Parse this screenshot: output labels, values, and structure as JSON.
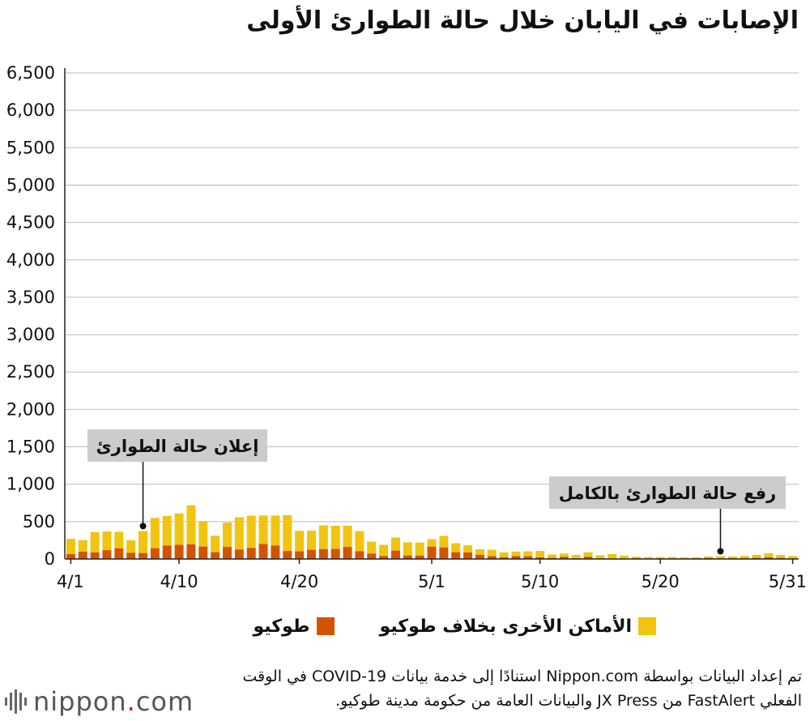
{
  "title": "الإصابات في اليابان خلال حالة الطوارئ الأولى",
  "legend": {
    "other_label": "الأماكن الأخرى بخلاف طوكيو",
    "tokyo_label": "طوكيو"
  },
  "source_text": "تم إعداد البيانات بواسطة Nippon.com استنادًا إلى خدمة بيانات COVID-19 في الوقت الفعلي FastAlert من JX Press والبيانات العامة من حكومة مدينة طوكيو.",
  "logo": {
    "name": "nippon",
    "dot": ".",
    "suffix": "com"
  },
  "colors": {
    "tokyo": "#d35400",
    "other": "#f1c40f",
    "grid": "#bbbbbb",
    "annotation_bg": "#cccccc"
  },
  "chart_data": {
    "type": "bar",
    "stacked": true,
    "ylim": [
      0,
      6500
    ],
    "yticks": [
      0,
      500,
      1000,
      1500,
      2000,
      2500,
      3000,
      3500,
      4000,
      4500,
      5000,
      5500,
      6000,
      6500
    ],
    "ytick_labels": [
      "0",
      "500",
      "1,000",
      "1,500",
      "2,000",
      "2,500",
      "3,000",
      "3,500",
      "4,000",
      "4,500",
      "5,000",
      "5,500",
      "6,000",
      "6,500"
    ],
    "xtick_labels": [
      "4/1",
      "4/10",
      "4/20",
      "5/1",
      "5/10",
      "5/20",
      "5/31"
    ],
    "xtick_days": [
      1,
      10,
      20,
      31,
      40,
      50,
      61
    ],
    "grid": true,
    "categories": [
      "4/1",
      "4/2",
      "4/3",
      "4/4",
      "4/5",
      "4/6",
      "4/7",
      "4/8",
      "4/9",
      "4/10",
      "4/11",
      "4/12",
      "4/13",
      "4/14",
      "4/15",
      "4/16",
      "4/17",
      "4/18",
      "4/19",
      "4/20",
      "4/21",
      "4/22",
      "4/23",
      "4/24",
      "4/25",
      "4/26",
      "4/27",
      "4/28",
      "4/29",
      "4/30",
      "5/1",
      "5/2",
      "5/3",
      "5/4",
      "5/5",
      "5/6",
      "5/7",
      "5/8",
      "5/9",
      "5/10",
      "5/11",
      "5/12",
      "5/13",
      "5/14",
      "5/15",
      "5/16",
      "5/17",
      "5/18",
      "5/19",
      "5/20",
      "5/21",
      "5/22",
      "5/23",
      "5/24",
      "5/25",
      "5/26",
      "5/27",
      "5/28",
      "5/29",
      "5/30",
      "5/31"
    ],
    "series": [
      {
        "name": "طوكيو",
        "color": "#d35400",
        "values": [
          66,
          97,
          89,
          118,
          143,
          83,
          80,
          144,
          181,
          189,
          197,
          166,
          91,
          161,
          127,
          149,
          201,
          181,
          107,
          102,
          123,
          132,
          134,
          161,
          103,
          72,
          39,
          112,
          47,
          46,
          165,
          154,
          91,
          87,
          57,
          38,
          23,
          39,
          36,
          22,
          15,
          28,
          10,
          30,
          9,
          5,
          5,
          10,
          5,
          5,
          7,
          3,
          2,
          14,
          8,
          10,
          11,
          15,
          22,
          14,
          5
        ]
      },
      {
        "name": "الأماكن الأخرى بخلاف طوكيو",
        "color": "#f1c40f",
        "values": [
          203,
          156,
          270,
          250,
          220,
          167,
          295,
          405,
          395,
          420,
          520,
          340,
          220,
          325,
          430,
          430,
          380,
          400,
          480,
          275,
          255,
          318,
          310,
          285,
          270,
          160,
          150,
          175,
          177,
          174,
          100,
          155,
          120,
          96,
          73,
          85,
          65,
          60,
          66,
          86,
          44,
          45,
          45,
          60,
          40,
          60,
          40,
          20,
          20,
          20,
          20,
          20,
          22,
          20,
          30,
          25,
          30,
          40,
          55,
          40,
          35
        ]
      }
    ],
    "annotations": [
      {
        "text": "إعلان حالة الطوارئ",
        "day": 7
      },
      {
        "text": "رفع حالة الطوارئ بالكامل",
        "day": 55
      }
    ]
  }
}
